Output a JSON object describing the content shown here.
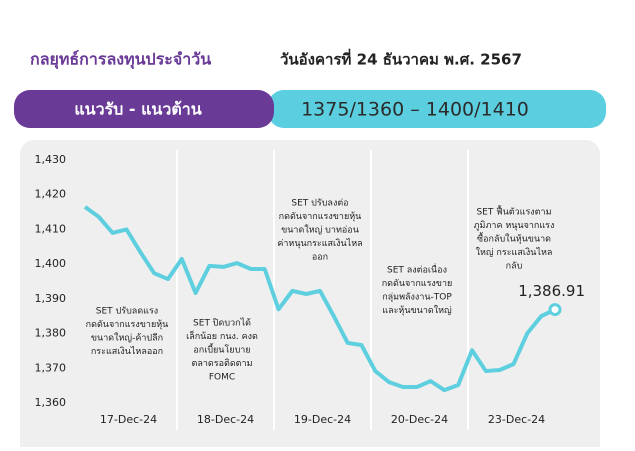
{
  "header": {
    "title": "กลยุทธ์การลงทุนประจำวัน",
    "date": "วันอังคารที่ 24 ธันวาคม พ.ศ. 2567",
    "band_label": "แนวรับ - แนวต้าน",
    "band_value": "1375/1360 – 1400/1410"
  },
  "chart_data": {
    "type": "line",
    "color": "#5ecfdf",
    "x_labels": [
      "17-Dec-24",
      "18-Dec-24",
      "19-Dec-24",
      "20-Dec-24",
      "23-Dec-24"
    ],
    "values": [
      1416.5,
      1413.6,
      1409,
      1410,
      1403.5,
      1397.4,
      1395.7,
      1401.5,
      1391.7,
      1399.5,
      1399.2,
      1400.3,
      1398.6,
      1398.6,
      1387,
      1392.3,
      1391.4,
      1392.3,
      1385,
      1377.3,
      1376.7,
      1369.2,
      1366,
      1364.6,
      1364.6,
      1366.3,
      1363.7,
      1365.2,
      1375.2,
      1369.2,
      1369.5,
      1371.2,
      1380.1,
      1385,
      1386.91
    ],
    "value_labels": [
      null,
      null,
      null,
      null,
      null,
      null,
      null,
      null,
      null,
      null,
      null,
      null,
      null,
      null,
      null,
      null,
      null,
      null,
      null,
      null,
      null,
      null,
      null,
      null,
      null,
      null,
      null,
      null,
      null,
      null,
      null,
      null,
      null,
      null,
      "1,386.91"
    ],
    "ylim": [
      1360,
      1430
    ],
    "yticks": [
      {
        "value": 1360,
        "label": "1,360"
      },
      {
        "value": 1370,
        "label": "1,370"
      },
      {
        "value": 1380,
        "label": "1,380"
      },
      {
        "value": 1390,
        "label": "1,390"
      },
      {
        "value": 1400,
        "label": "1,400"
      },
      {
        "value": 1410,
        "label": "1,410"
      },
      {
        "value": 1420,
        "label": "1,420"
      },
      {
        "value": 1430,
        "label": "1,430"
      }
    ],
    "annotations": [
      [
        "SET ปรับลดแรง",
        "กดดันจากแรงขายหุ้น",
        "ขนาดใหญ่-ค้าปลีก",
        "กระแสเงินไหลออก"
      ],
      [
        "SET ปิดบวกได้",
        "เล็กน้อย กนง. คงด",
        "อกเบี้ยนโยบาย",
        "ตลาดรอติดตาม",
        "FOMC"
      ],
      [
        "SET ปรับลงต่อ",
        "กดดันจากแรงขายหุ้น",
        "ขนาดใหญ่ บาทอ่อน",
        "ค่าหนุนกระแสเงินไหล",
        "ออก"
      ],
      [
        "SET ลงต่อเนื่อง",
        "กดดันจากแรงขาย",
        "กลุ่มพลังงาน-TOP",
        "และหุ้นขนาดใหญ่"
      ],
      [
        "SET ฟื้นตัวแรงตาม",
        "ภูมิภาค หนุนจากแรง",
        "ซื้อกลับในหุ้นขนาด",
        "ใหญ่ กระแสเงินไหล",
        "กลับ"
      ]
    ]
  }
}
